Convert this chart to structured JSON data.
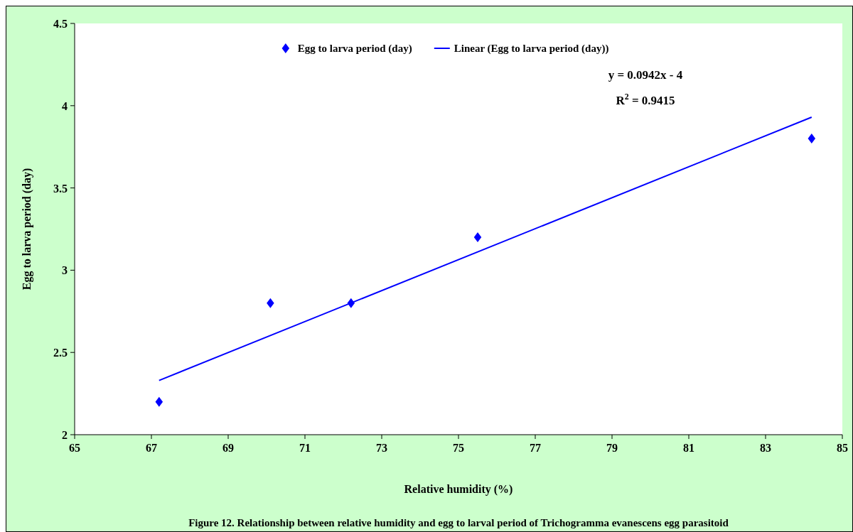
{
  "chart_data": {
    "type": "scatter",
    "xlabel": "Relative humidity (%)",
    "ylabel": "Egg to larva period (day)",
    "xlim": [
      65,
      85
    ],
    "xticks": [
      65,
      67,
      69,
      71,
      73,
      75,
      77,
      79,
      81,
      83,
      85
    ],
    "ylim": [
      2,
      4.5
    ],
    "yticks": [
      2,
      2.5,
      3,
      3.5,
      4,
      4.5
    ],
    "grid": false,
    "legend": "top",
    "series": [
      {
        "name": "Egg to larva period (day)",
        "marker": "diamond",
        "color": "#0000ff",
        "x": [
          67.2,
          70.1,
          72.2,
          75.5,
          84.2
        ],
        "values": [
          2.2,
          2.8,
          2.8,
          3.2,
          3.8
        ]
      },
      {
        "name": "Linear (Egg to larva period (day))",
        "type": "line",
        "marker": "none",
        "color": "#0000ff",
        "x": [
          67.2,
          84.2
        ],
        "values": [
          2.33,
          3.93
        ]
      }
    ],
    "annotations": [
      {
        "text": "y = 0.0942x - 4"
      },
      {
        "text": "R$^{2}$ = 0.9415"
      },
      {
        "text": "Figure 12. Relationship between relative humidity and egg to larval period of Trichogramma evanescens egg parasitoid"
      }
    ]
  }
}
